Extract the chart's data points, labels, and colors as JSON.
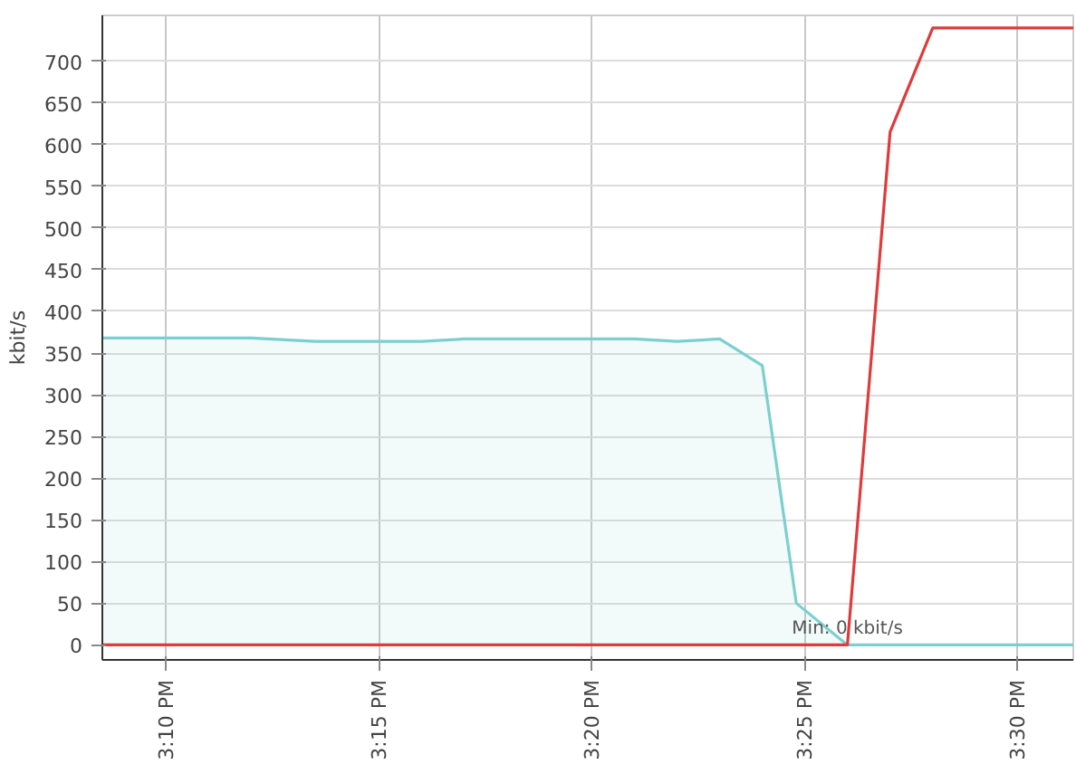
{
  "chart_data": {
    "type": "line",
    "ylabel": "kbit/s",
    "xlim": [
      15.1417,
      15.5217
    ],
    "ylim": [
      -18,
      755
    ],
    "xticks": [
      {
        "value": 15.1667,
        "label": "3:10 PM"
      },
      {
        "value": 15.25,
        "label": "3:15 PM"
      },
      {
        "value": 15.3333,
        "label": "3:20 PM"
      },
      {
        "value": 15.4167,
        "label": "3:25 PM"
      },
      {
        "value": 15.5,
        "label": "3:30 PM"
      }
    ],
    "yticks": [
      0,
      50,
      100,
      150,
      200,
      250,
      300,
      350,
      400,
      450,
      500,
      550,
      600,
      650,
      700
    ],
    "grid": true,
    "marker": "none",
    "line_style": "solid",
    "series": [
      {
        "type": "area",
        "color": "#7ccfd0",
        "x": [
          15.1417,
          15.2,
          15.225,
          15.2667,
          15.2833,
          15.35,
          15.3667,
          15.3833,
          15.4,
          15.4133,
          15.4333,
          15.5217
        ],
        "values": [
          368,
          368,
          364,
          364,
          367,
          367,
          364,
          367,
          335,
          50,
          0,
          0
        ]
      },
      {
        "color": "#e03a3a",
        "x": [
          15.1417,
          15.4333,
          15.45,
          15.4667,
          15.5217
        ],
        "values": [
          0,
          0,
          615,
          740,
          740
        ]
      }
    ],
    "annotations": [
      {
        "text": "Min: 0 kbit/s",
        "x": 15.4333,
        "y": 0
      }
    ]
  }
}
